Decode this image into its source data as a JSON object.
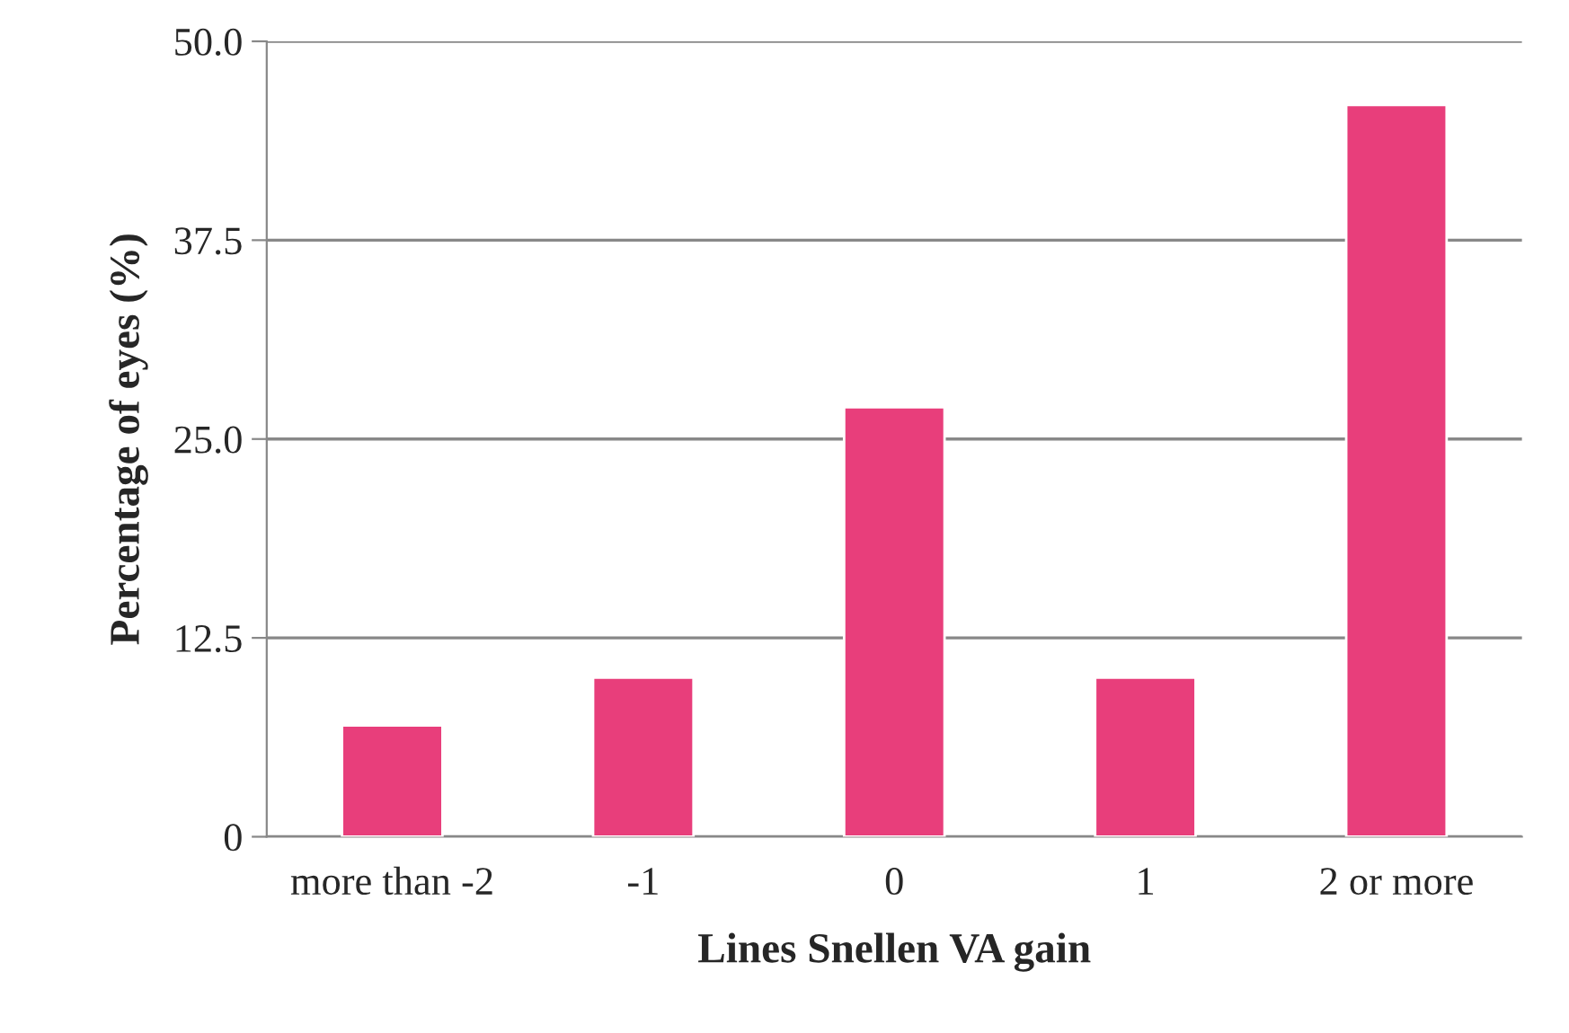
{
  "chart_data": {
    "type": "bar",
    "xlabel": "Lines Snellen VA gain",
    "ylabel": "Percentage of eyes (%)",
    "categories": [
      "more than -2",
      "-1",
      "0",
      "1",
      "2 or more"
    ],
    "values": [
      7,
      10,
      27,
      10,
      46
    ],
    "color": "#e83e7b",
    "ylim": [
      0,
      50
    ],
    "yticks": [
      {
        "value": 0,
        "label": "0"
      },
      {
        "value": 12.5,
        "label": "12.5"
      },
      {
        "value": 25,
        "label": "25.0"
      },
      {
        "value": 37.5,
        "label": "37.5"
      },
      {
        "value": 50,
        "label": "50.0"
      }
    ],
    "grid": "y"
  }
}
